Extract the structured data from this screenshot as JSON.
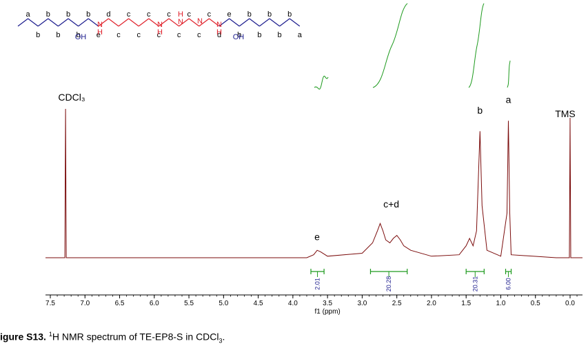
{
  "structure": {
    "atom_labels": [
      "a",
      "b",
      "b",
      "b",
      "b",
      "b",
      "b",
      "e",
      "d",
      "c",
      "c",
      "c",
      "c",
      "c",
      "c",
      "c",
      "c",
      "c",
      "c",
      "d",
      "e",
      "b",
      "b",
      "b",
      "b",
      "b",
      "b",
      "a"
    ],
    "heteroatoms": [
      "OH",
      "H",
      "N",
      "N",
      "H",
      "H",
      "N",
      "N",
      "H",
      "N",
      "OH"
    ],
    "colors": {
      "alkyl": "#1a1a8c",
      "amine": "#e0202a"
    }
  },
  "chart_data": {
    "type": "line",
    "xlabel": "f1 (ppm)",
    "xlim": [
      7.65,
      -0.2
    ],
    "x_reversed": true,
    "ticks": [
      "7.5",
      "7.0",
      "6.5",
      "6.0",
      "5.5",
      "5.0",
      "4.5",
      "4.0",
      "3.5",
      "3.0",
      "2.5",
      "2.0",
      "1.5",
      "1.0",
      "0.5",
      "0.0"
    ],
    "tick_values": [
      7.5,
      7.0,
      6.5,
      6.0,
      5.5,
      5.0,
      4.5,
      4.0,
      3.5,
      3.0,
      2.5,
      2.0,
      1.5,
      1.0,
      0.5,
      0.0
    ],
    "line_color": "#7a0a0a",
    "spectrum_points": [
      {
        "x": 7.65,
        "y": 0.0
      },
      {
        "x": 7.29,
        "y": 0.0
      },
      {
        "x": 7.28,
        "y": 1.0
      },
      {
        "x": 7.27,
        "y": 0.0
      },
      {
        "x": 3.8,
        "y": 0.0
      },
      {
        "x": 3.7,
        "y": 0.02
      },
      {
        "x": 3.65,
        "y": 0.05
      },
      {
        "x": 3.6,
        "y": 0.04
      },
      {
        "x": 3.5,
        "y": 0.01
      },
      {
        "x": 3.0,
        "y": 0.03
      },
      {
        "x": 2.85,
        "y": 0.1
      },
      {
        "x": 2.78,
        "y": 0.18
      },
      {
        "x": 2.74,
        "y": 0.23
      },
      {
        "x": 2.7,
        "y": 0.18
      },
      {
        "x": 2.66,
        "y": 0.12
      },
      {
        "x": 2.6,
        "y": 0.1
      },
      {
        "x": 2.55,
        "y": 0.13
      },
      {
        "x": 2.5,
        "y": 0.15
      },
      {
        "x": 2.45,
        "y": 0.12
      },
      {
        "x": 2.4,
        "y": 0.08
      },
      {
        "x": 2.3,
        "y": 0.05
      },
      {
        "x": 2.0,
        "y": 0.01
      },
      {
        "x": 1.6,
        "y": 0.02
      },
      {
        "x": 1.5,
        "y": 0.08
      },
      {
        "x": 1.45,
        "y": 0.13
      },
      {
        "x": 1.4,
        "y": 0.08
      },
      {
        "x": 1.35,
        "y": 0.18
      },
      {
        "x": 1.3,
        "y": 0.85
      },
      {
        "x": 1.27,
        "y": 0.35
      },
      {
        "x": 1.2,
        "y": 0.05
      },
      {
        "x": 1.0,
        "y": 0.01
      },
      {
        "x": 0.91,
        "y": 0.3
      },
      {
        "x": 0.89,
        "y": 0.92
      },
      {
        "x": 0.87,
        "y": 0.3
      },
      {
        "x": 0.85,
        "y": 0.02
      },
      {
        "x": 0.2,
        "y": 0.0
      },
      {
        "x": 0.01,
        "y": 0.0
      },
      {
        "x": 0.0,
        "y": 0.94
      },
      {
        "x": -0.01,
        "y": 0.0
      },
      {
        "x": -0.2,
        "y": 0.0
      }
    ],
    "peak_labels": [
      {
        "text": "CDCl₃",
        "x": 7.28,
        "y": 1.05
      },
      {
        "text": "TMS",
        "x": 0.0,
        "y": 1.05
      },
      {
        "text": "a",
        "x": 0.89,
        "y": 1.02
      },
      {
        "text": "b",
        "x": 1.3,
        "y": 0.95
      },
      {
        "text": "c+d",
        "x": 2.58,
        "y": 0.32
      },
      {
        "text": "e",
        "x": 3.65,
        "y": 0.1
      }
    ],
    "integrals": [
      {
        "from": 3.74,
        "to": 3.55,
        "value": "2.01"
      },
      {
        "from": 2.88,
        "to": 2.35,
        "value": "20.28"
      },
      {
        "from": 1.5,
        "to": 1.24,
        "value": "20.31"
      },
      {
        "from": 0.93,
        "to": 0.85,
        "value": "6.00"
      }
    ],
    "integral_curves": [
      {
        "x1": 3.8,
        "x2": 3.6,
        "level0": 0.0,
        "level1": 0.1
      },
      {
        "x1": 2.98,
        "x2": 2.38,
        "level0": 0.0,
        "level1": 1.0
      },
      {
        "x1": 1.55,
        "x2": 1.25,
        "level0": 0.0,
        "level1": 1.0
      },
      {
        "x1": 0.92,
        "x2": 0.9,
        "level0": 0.0,
        "level1": 0.3
      }
    ]
  },
  "caption": {
    "label": "igure S13.",
    "sup": "1",
    "text_before_sub": "H NMR spectrum of TE-EP8-S in CDCl",
    "sub": "3",
    "text_after_sub": "."
  }
}
